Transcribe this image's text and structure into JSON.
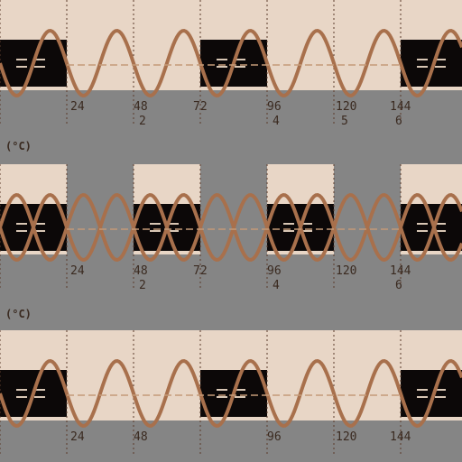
{
  "colors": {
    "background": "#858585",
    "panel": "#e8d6c6",
    "band": "#0c0808",
    "wave": "#a8704c",
    "wave_light": "#c49a78",
    "text": "#3a2a20",
    "grid": "#5a3a2a",
    "dash": "#d8c6b4"
  },
  "tiles": [
    {
      "bands": "11001",
      "variant": "top"
    },
    {
      "bands": "10101",
      "variant": "middle"
    },
    {
      "bands": "01110",
      "variant": "bottom"
    }
  ],
  "tick_rows": [
    {
      "top": [
        "24",
        "48",
        "72",
        "96",
        "120",
        "144"
      ],
      "bottom": [
        "",
        "2",
        "",
        "4",
        "5",
        "6"
      ]
    },
    {
      "top": [
        "24",
        "48",
        "72",
        "96",
        "120",
        "144"
      ],
      "bottom": [
        "",
        "2",
        "",
        "4",
        "",
        "6"
      ]
    },
    {
      "top": [
        "24",
        "48",
        "",
        "96",
        "120",
        "144"
      ],
      "bottom": [
        "",
        "",
        "",
        "",
        "",
        ""
      ]
    }
  ],
  "unit_labels": [
    "(°C)",
    "(°C)"
  ]
}
